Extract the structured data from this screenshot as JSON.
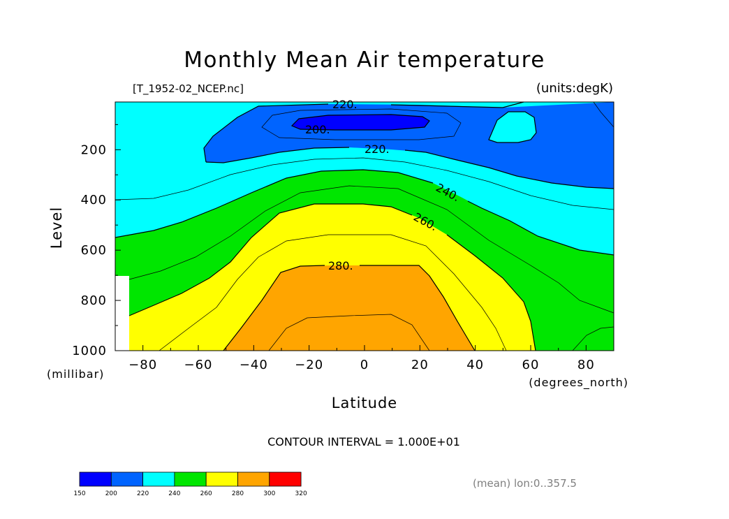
{
  "chart_data": {
    "type": "heatmap",
    "subtype": "filled-contour",
    "title": "Monthly Mean Air temperature",
    "file_label": "[T_1952-02_NCEP.nc]",
    "units_label": "(units:degK)",
    "xlabel": "Latitude",
    "xunits": "(degrees_north)",
    "ylabel": "Level",
    "yunits": "(millibar)",
    "xlim": [
      -90,
      90
    ],
    "ylim": [
      1000,
      10
    ],
    "y_inverted": true,
    "xticks": [
      -80,
      -60,
      -40,
      -20,
      0,
      20,
      40,
      60,
      80
    ],
    "yticks": [
      200,
      400,
      600,
      800,
      1000
    ],
    "contour_interval_text": "CONTOUR INTERVAL = 1.000E+01",
    "contour_labels": [
      "220.",
      "200.",
      "220.",
      "240.",
      "260.",
      "280."
    ],
    "footer_text": "(mean) lon:0..357.5",
    "colorbar": {
      "ticks": [
        "150",
        "200",
        "220",
        "240",
        "260",
        "280",
        "300",
        "320"
      ],
      "bands": [
        {
          "from": 150,
          "to": 200,
          "color": "#0000ff"
        },
        {
          "from": 200,
          "to": 220,
          "color": "#0064ff"
        },
        {
          "from": 220,
          "to": 240,
          "color": "#00ffff"
        },
        {
          "from": 240,
          "to": 260,
          "color": "#00e600"
        },
        {
          "from": 260,
          "to": 280,
          "color": "#ffff00"
        },
        {
          "from": 280,
          "to": 300,
          "color": "#ffa500"
        },
        {
          "from": 300,
          "to": 320,
          "color": "#ff0000"
        }
      ]
    }
  }
}
